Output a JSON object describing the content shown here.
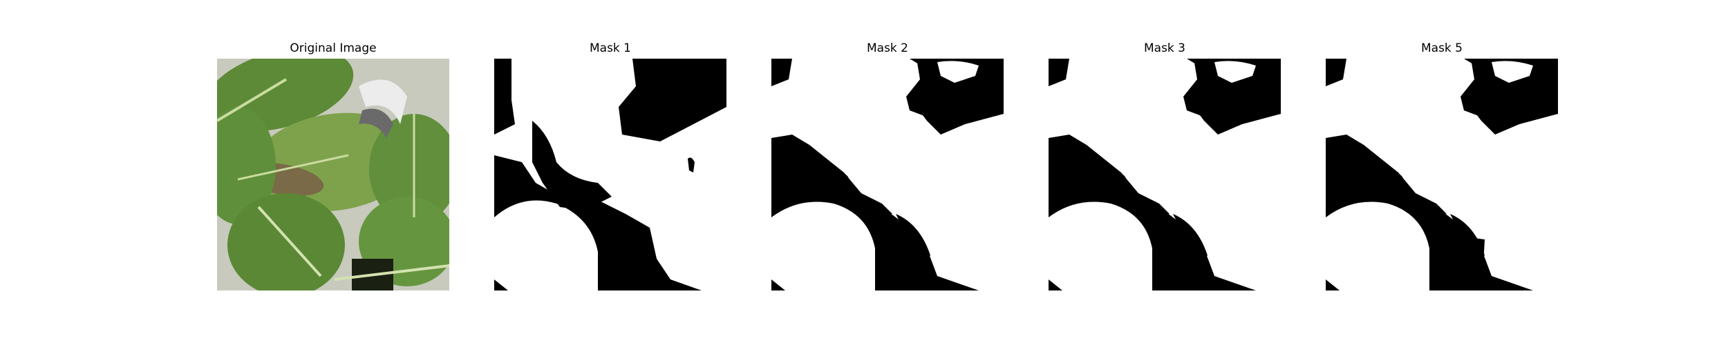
{
  "figure": {
    "panels": [
      {
        "title": "Original Image",
        "kind": "photo",
        "subject": "green leafy plants (bok choy) with a white pot rim"
      },
      {
        "title": "Mask 1",
        "kind": "binary-mask"
      },
      {
        "title": "Mask 2",
        "kind": "binary-mask"
      },
      {
        "title": "Mask 3",
        "kind": "binary-mask"
      },
      {
        "title": "Mask 5",
        "kind": "binary-mask"
      }
    ]
  },
  "colors": {
    "background": "#ffffff",
    "mask_fg": "#ffffff",
    "mask_bg": "#000000",
    "leaf_dark": "#4e7a32",
    "leaf_light": "#8fb25a"
  }
}
